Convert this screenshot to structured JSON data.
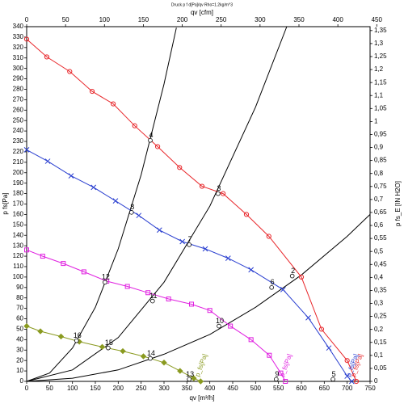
{
  "chart_data": {
    "type": "line",
    "title": "Druck p f d[Pa]/qv Rho=1.2kg/m^3",
    "x_label": "qv [m³/h]",
    "x2_label": "qv [cfm]",
    "y_label": "p fs[Pa]",
    "y2_label": "p fs_E [IN H2O]",
    "xlim": [
      0,
      750
    ],
    "xticks": [
      0,
      50,
      100,
      150,
      200,
      250,
      300,
      350,
      400,
      450,
      500,
      550,
      600,
      650,
      700,
      750
    ],
    "x2lim": [
      0,
      441.4
    ],
    "x2ticks": [
      0,
      50,
      100,
      150,
      200,
      250,
      300,
      350,
      400,
      450
    ],
    "ylim": [
      0,
      340
    ],
    "yticks": [
      0,
      10,
      20,
      30,
      40,
      50,
      60,
      70,
      80,
      90,
      100,
      110,
      120,
      130,
      140,
      150,
      160,
      170,
      180,
      190,
      200,
      210,
      220,
      230,
      240,
      250,
      260,
      270,
      280,
      290,
      300,
      310,
      320,
      330,
      340
    ],
    "y2lim": [
      0,
      1.365
    ],
    "y2ticks": [
      0,
      {
        "value": 0.05,
        "label": "0,05"
      },
      {
        "value": 0.1,
        "label": "0,1"
      },
      {
        "value": 0.15,
        "label": "0,15"
      },
      {
        "value": 0.2,
        "label": "0,2"
      },
      {
        "value": 0.25,
        "label": "0,25"
      },
      {
        "value": 0.3,
        "label": "0,3"
      },
      {
        "value": 0.35,
        "label": "0,35"
      },
      {
        "value": 0.4,
        "label": "0,4"
      },
      {
        "value": 0.45,
        "label": "0,45"
      },
      {
        "value": 0.5,
        "label": "0,5"
      },
      {
        "value": 0.55,
        "label": "0,55"
      },
      {
        "value": 0.6,
        "label": "0,6"
      },
      {
        "value": 0.65,
        "label": "0,65"
      },
      {
        "value": 0.7,
        "label": "0,7"
      },
      {
        "value": 0.75,
        "label": "0,75"
      },
      {
        "value": 0.8,
        "label": "0,8"
      },
      {
        "value": 0.85,
        "label": "0,85"
      },
      {
        "value": 0.9,
        "label": "0,9"
      },
      {
        "value": 0.95,
        "label": "0,95"
      },
      1,
      {
        "value": 1.05,
        "label": "1,05"
      },
      {
        "value": 1.1,
        "label": "1,1"
      },
      {
        "value": 1.15,
        "label": "1,15"
      },
      {
        "value": 1.2,
        "label": "1,2"
      },
      {
        "value": 1.25,
        "label": "1,25"
      },
      {
        "value": 1.3,
        "label": "1,3"
      },
      {
        "value": 1.35,
        "label": "1,35"
      }
    ],
    "series": [
      {
        "name": "p_fs[Pa]",
        "color": "#e8262a",
        "marker": "circle",
        "x": [
          0,
          44,
          94,
          143,
          189,
          236,
          286,
          334,
          383,
          429,
          480,
          529,
          600,
          644,
          700,
          720
        ],
        "values": [
          328,
          311,
          297,
          278,
          266,
          245,
          225,
          205,
          187,
          180,
          160,
          139,
          100,
          50,
          20,
          0
        ]
      },
      {
        "name": "p_fs[Pa]",
        "color": "#2a3fd0",
        "marker": "cross",
        "x": [
          0,
          46,
          97,
          146,
          194,
          245,
          290,
          340,
          390,
          440,
          490,
          560,
          615,
          660,
          700,
          710
        ],
        "values": [
          222,
          211,
          197,
          186,
          173,
          159,
          145,
          134,
          127,
          118,
          107,
          88,
          61,
          32,
          5,
          0
        ]
      },
      {
        "name": "p_fs[Pa]",
        "color": "#e020e0",
        "marker": "square",
        "x": [
          0,
          35,
          80,
          125,
          175,
          220,
          265,
          310,
          360,
          400,
          445,
          490,
          530,
          555,
          565
        ],
        "values": [
          126,
          120,
          113,
          105,
          96,
          91,
          85,
          79,
          74,
          68,
          53,
          40,
          25,
          8,
          0
        ]
      },
      {
        "name": "p_fs[Pa]",
        "color": "#8a9a20",
        "marker": "diamond",
        "x": [
          0,
          30,
          75,
          115,
          165,
          210,
          255,
          300,
          335,
          365,
          380
        ],
        "values": [
          53,
          48,
          43,
          38,
          33,
          29,
          24,
          18,
          10,
          3,
          0
        ]
      }
    ],
    "system_curves": [
      {
        "color": "#000000",
        "x": [
          0,
          50,
          100,
          150,
          200,
          250,
          300,
          327
        ],
        "values": [
          0,
          8,
          32,
          71,
          127,
          198,
          285,
          339
        ]
      },
      {
        "color": "#000000",
        "x": [
          0,
          100,
          200,
          300,
          400,
          500,
          568
        ],
        "values": [
          0,
          11,
          42,
          95,
          168,
          263,
          340
        ]
      },
      {
        "color": "#000000",
        "x": [
          0,
          100,
          200,
          300,
          400,
          500,
          600,
          700,
          750
        ],
        "values": [
          0,
          3,
          11,
          26,
          45,
          71,
          102,
          139,
          160
        ]
      }
    ],
    "points": [
      {
        "label": "2",
        "x": 580,
        "y": 101
      },
      {
        "label": "3",
        "x": 418,
        "y": 180
      },
      {
        "label": "4",
        "x": 270,
        "y": 231
      },
      {
        "label": "5",
        "x": 669,
        "y": 2
      },
      {
        "label": "6",
        "x": 535,
        "y": 90
      },
      {
        "label": "7",
        "x": 355,
        "y": 131
      },
      {
        "label": "8",
        "x": 229,
        "y": 162
      },
      {
        "label": "9",
        "x": 545,
        "y": 2
      },
      {
        "label": "10",
        "x": 420,
        "y": 53
      },
      {
        "label": "11",
        "x": 275,
        "y": 77
      },
      {
        "label": "12",
        "x": 171,
        "y": 95
      },
      {
        "label": "13",
        "x": 355,
        "y": 2
      },
      {
        "label": "14",
        "x": 270,
        "y": 22
      },
      {
        "label": "15",
        "x": 178,
        "y": 32
      },
      {
        "label": "16",
        "x": 109,
        "y": 39
      }
    ]
  }
}
